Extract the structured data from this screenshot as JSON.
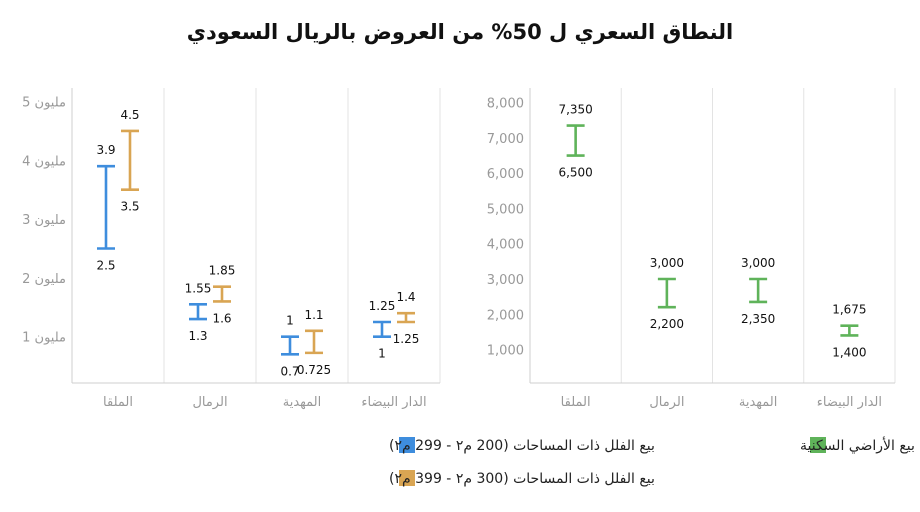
{
  "title": "النطاق السعري ل 50% من العروض بالريال السعودي",
  "colors": {
    "blue": "#3E8DDD",
    "orange": "#D9A553",
    "green": "#5FB35A"
  },
  "chart_data": [
    {
      "type": "range",
      "ylim": [
        0,
        5.3
      ],
      "yticks": [
        1,
        2,
        3,
        4,
        5
      ],
      "ytick_labels": [
        "1 مليون",
        "2 مليون",
        "3 مليون",
        "4 مليون",
        "5 مليون"
      ],
      "categories": [
        "الملقا",
        "الرمال",
        "المهدية",
        "الدار البيضاء"
      ],
      "grid": true,
      "legend_position": "bottom",
      "series": [
        {
          "name": "بيع الفلل ذات المساحات (200 م٢ - 299 م٢)",
          "color": "#3E8DDD",
          "low": [
            2.5,
            1.3,
            0.7,
            1
          ],
          "high": [
            3.9,
            1.55,
            1,
            1.25
          ],
          "low_labels": [
            "2.5",
            "1.3",
            "0.7",
            "1"
          ],
          "high_labels": [
            "3.9",
            "1.55",
            "1",
            "1.25"
          ]
        },
        {
          "name": "بيع الفلل ذات المساحات (300 م٢ - 399 م٢)",
          "color": "#D9A553",
          "low": [
            3.5,
            1.6,
            0.725,
            1.25
          ],
          "high": [
            4.5,
            1.85,
            1.1,
            1.4
          ],
          "low_labels": [
            "3.5",
            "1.6",
            "0.725",
            "1.25"
          ],
          "high_labels": [
            "4.5",
            "1.85",
            "1.1",
            "1.4"
          ]
        }
      ]
    },
    {
      "type": "range",
      "ylim": [
        0,
        8300
      ],
      "yticks": [
        1000,
        2000,
        3000,
        4000,
        5000,
        6000,
        7000,
        8000
      ],
      "ytick_labels": [
        "1,000",
        "2,000",
        "3,000",
        "4,000",
        "5,000",
        "6,000",
        "7,000",
        "8,000"
      ],
      "categories": [
        "الملقا",
        "الرمال",
        "المهدية",
        "الدار البيضاء"
      ],
      "grid": true,
      "legend_position": "bottom",
      "series": [
        {
          "name": "بيع الأراضي السكنية",
          "color": "#5FB35A",
          "low": [
            6500,
            2200,
            2350,
            1400
          ],
          "high": [
            7350,
            3000,
            3000,
            1675
          ],
          "low_labels": [
            "6,500",
            "2,200",
            "2,350",
            "1,400"
          ],
          "high_labels": [
            "7,350",
            "3,000",
            "3,000",
            "1,675"
          ]
        }
      ]
    }
  ]
}
